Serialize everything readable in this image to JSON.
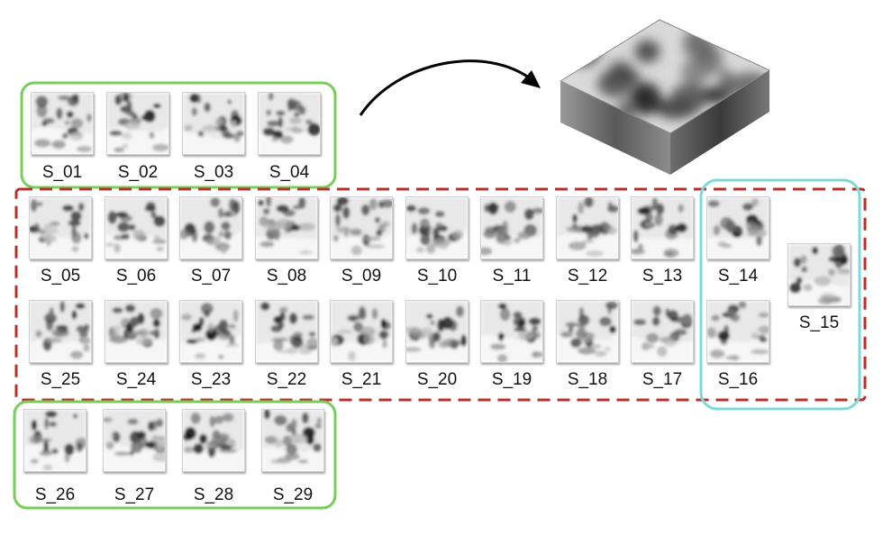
{
  "colors": {
    "green_group": "#77cc5a",
    "red_group": "#b8302a",
    "cyan_group": "#7fd8d8",
    "arrow": "#000000"
  },
  "groups": [
    {
      "name": "green-group-top",
      "style": "solid",
      "color_key": "green_group"
    },
    {
      "name": "red-dashed-group",
      "style": "dashed",
      "color_key": "red_group"
    },
    {
      "name": "cyan-group",
      "style": "solid",
      "color_key": "cyan_group"
    },
    {
      "name": "green-group-bottom",
      "style": "solid",
      "color_key": "green_group"
    }
  ],
  "slices": {
    "top_row": [
      "S_01",
      "S_02",
      "S_03",
      "S_04"
    ],
    "middle_row_1": [
      "S_05",
      "S_06",
      "S_07",
      "S_08",
      "S_09",
      "S_10",
      "S_11",
      "S_12",
      "S_13",
      "S_14"
    ],
    "middle_row_2": [
      "S_25",
      "S_24",
      "S_23",
      "S_22",
      "S_21",
      "S_20",
      "S_19",
      "S_18",
      "S_17",
      "S_16"
    ],
    "side": [
      "S_15"
    ],
    "bottom_row": [
      "S_26",
      "S_27",
      "S_28",
      "S_29"
    ]
  },
  "volume": {
    "icon": "3d-volume-block-icon"
  },
  "arrow": {
    "icon": "curved-arrow-icon"
  }
}
